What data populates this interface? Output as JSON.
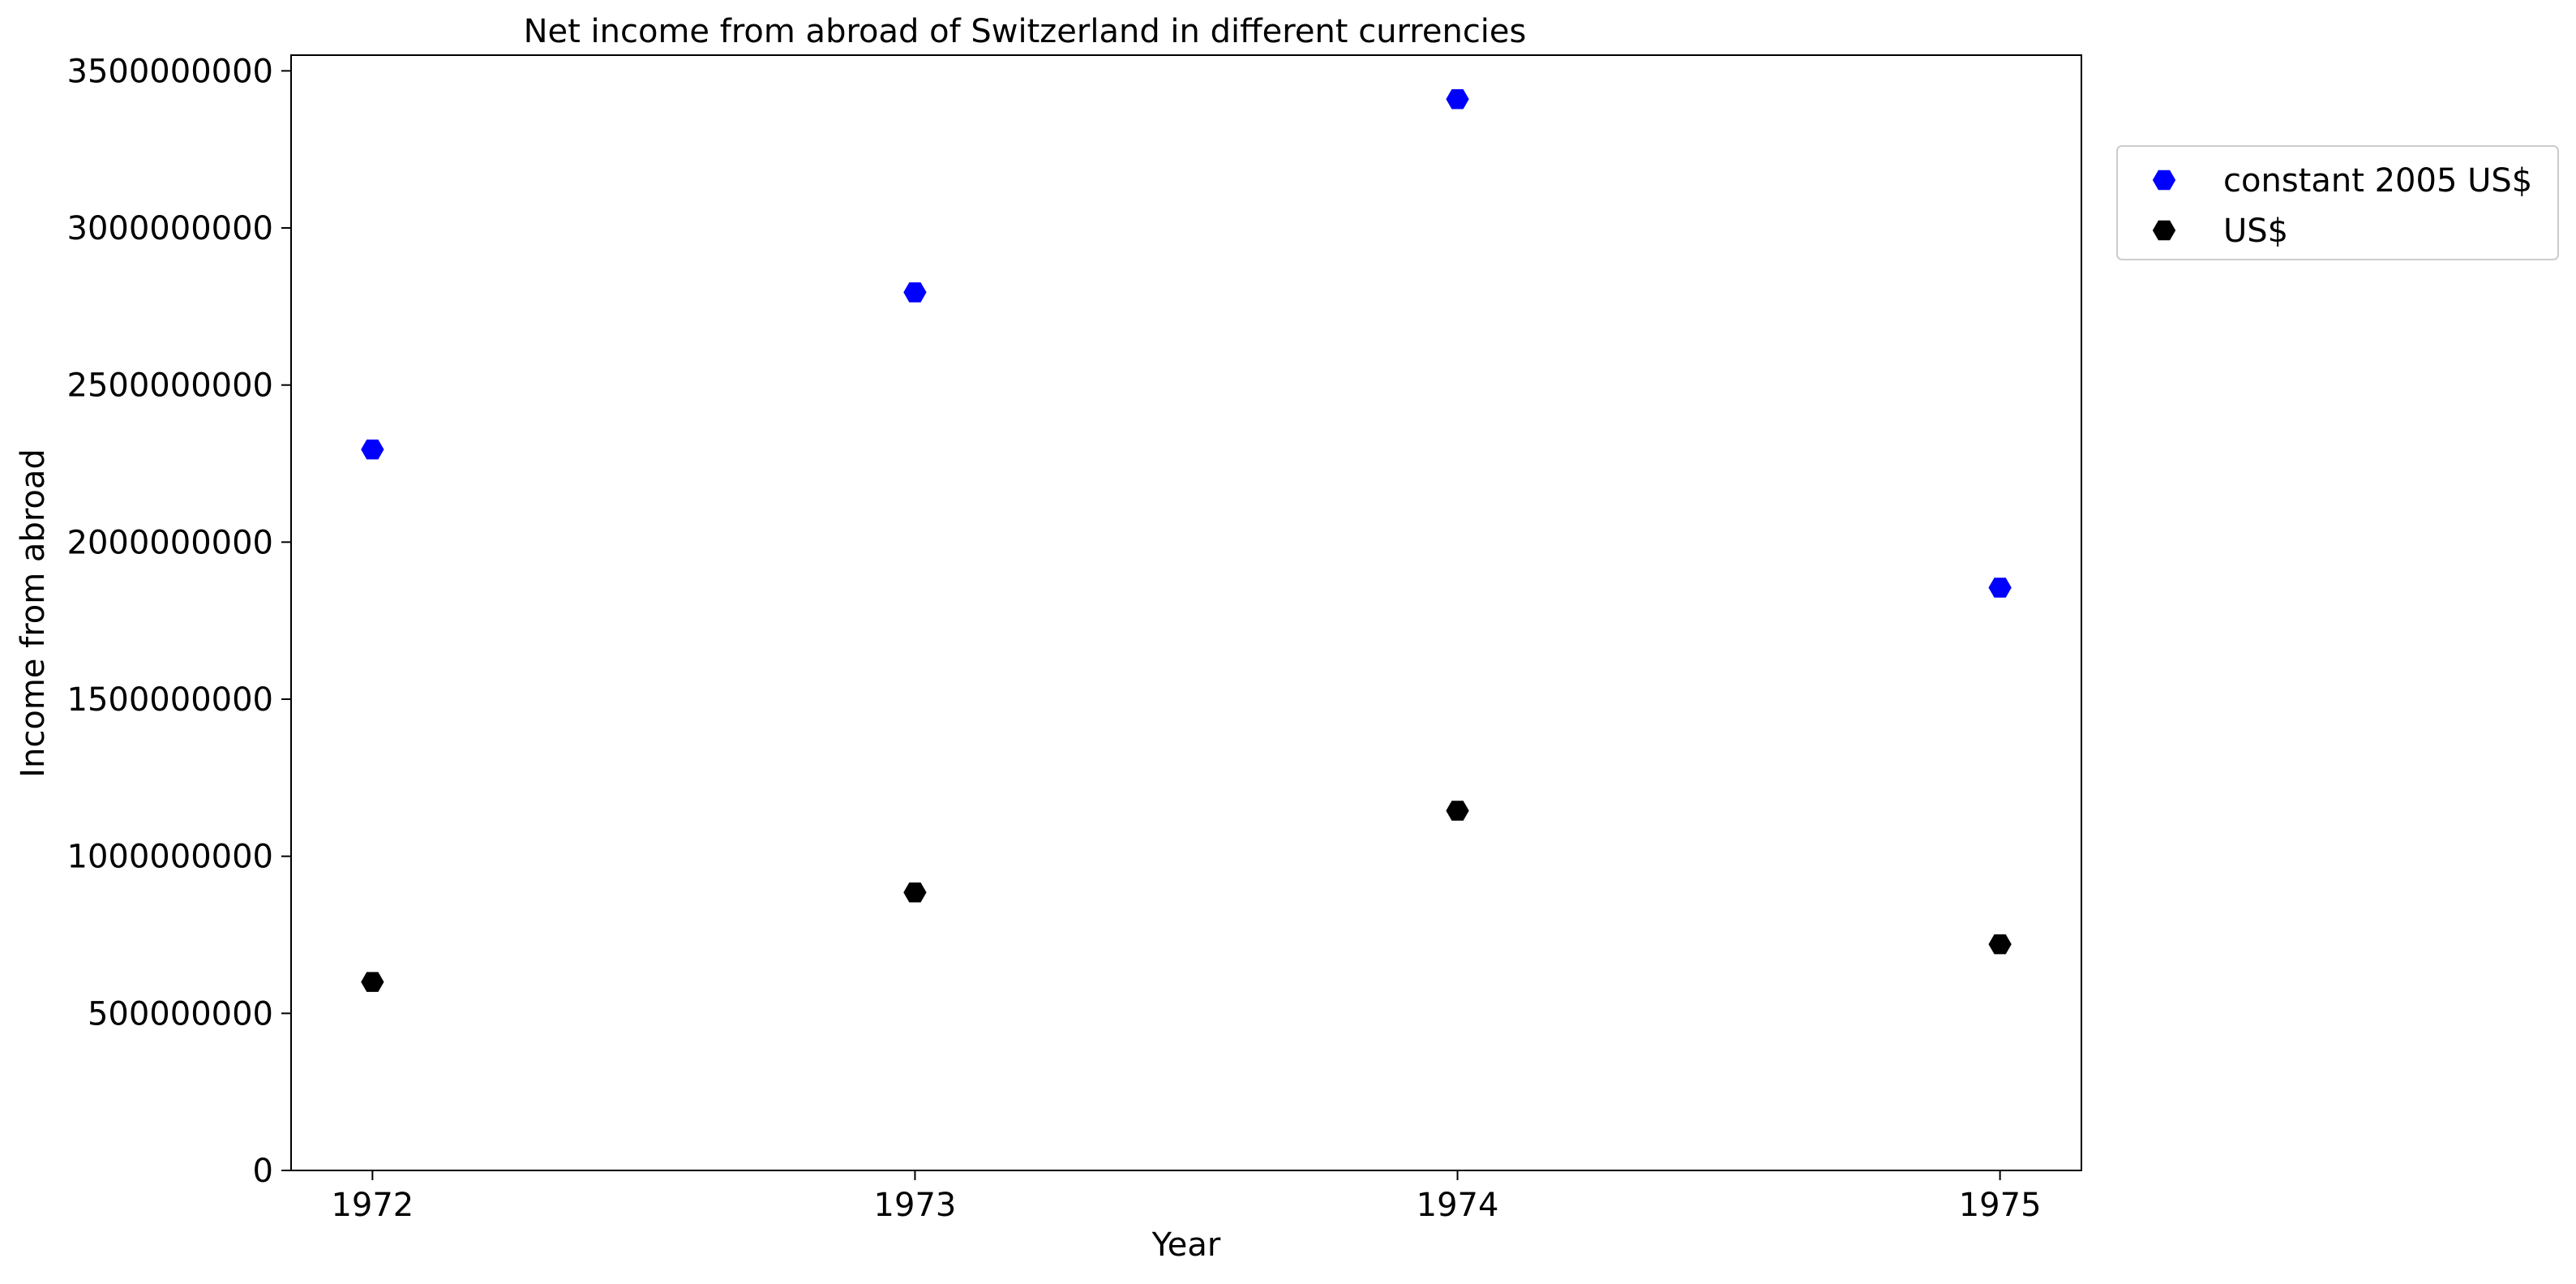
{
  "chart_data": {
    "type": "scatter",
    "title": "Net income from abroad of Switzerland in different currencies",
    "xlabel": "Year",
    "ylabel": "Income from abroad",
    "x": [
      1972,
      1973,
      1974,
      1975
    ],
    "x_tick_labels": [
      "1972",
      "1973",
      "1974",
      "1975"
    ],
    "xlim": [
      1971.85,
      1975.15
    ],
    "ylim": [
      0,
      3550000000
    ],
    "y_ticks": [
      0,
      500000000,
      1000000000,
      1500000000,
      2000000000,
      2500000000,
      3000000000,
      3500000000
    ],
    "y_tick_labels": [
      "0",
      "500000000",
      "1000000000",
      "1500000000",
      "2000000000",
      "2500000000",
      "3000000000",
      "3500000000"
    ],
    "grid": false,
    "legend_position": "outside-top-right",
    "marker": "hexagon",
    "series": [
      {
        "name": "constant 2005 US$",
        "color": "#0000ff",
        "values": [
          2295000000,
          2795000000,
          3410000000,
          1855000000
        ]
      },
      {
        "name": "US$",
        "color": "#000000",
        "values": [
          600000000,
          885000000,
          1145000000,
          720000000
        ]
      }
    ]
  }
}
